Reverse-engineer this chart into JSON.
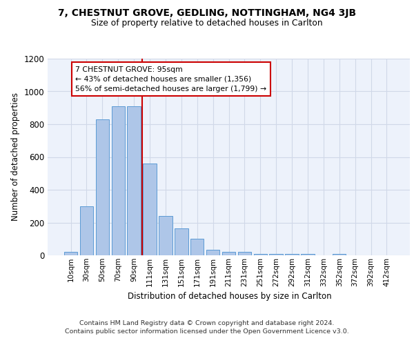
{
  "title": "7, CHESTNUT GROVE, GEDLING, NOTTINGHAM, NG4 3JB",
  "subtitle": "Size of property relative to detached houses in Carlton",
  "xlabel": "Distribution of detached houses by size in Carlton",
  "ylabel": "Number of detached properties",
  "bar_labels": [
    "10sqm",
    "30sqm",
    "50sqm",
    "70sqm",
    "90sqm",
    "111sqm",
    "131sqm",
    "151sqm",
    "171sqm",
    "191sqm",
    "211sqm",
    "231sqm",
    "251sqm",
    "272sqm",
    "292sqm",
    "312sqm",
    "332sqm",
    "352sqm",
    "372sqm",
    "392sqm",
    "412sqm"
  ],
  "bar_values": [
    20,
    300,
    830,
    910,
    910,
    560,
    240,
    163,
    100,
    33,
    20,
    20,
    10,
    10,
    10,
    10,
    0,
    10,
    0,
    0,
    0
  ],
  "bar_color": "#aec6e8",
  "bar_edge_color": "#5b9bd5",
  "grid_color": "#d0d8e8",
  "background_color": "#edf2fb",
  "vline_x": 4.5,
  "vline_color": "#cc0000",
  "annotation_text": "7 CHESTNUT GROVE: 95sqm\n← 43% of detached houses are smaller (1,356)\n56% of semi-detached houses are larger (1,799) →",
  "annotation_box_color": "#cc0000",
  "ylim": [
    0,
    1200
  ],
  "yticks": [
    0,
    200,
    400,
    600,
    800,
    1000,
    1200
  ],
  "footer_line1": "Contains HM Land Registry data © Crown copyright and database right 2024.",
  "footer_line2": "Contains public sector information licensed under the Open Government Licence v3.0."
}
